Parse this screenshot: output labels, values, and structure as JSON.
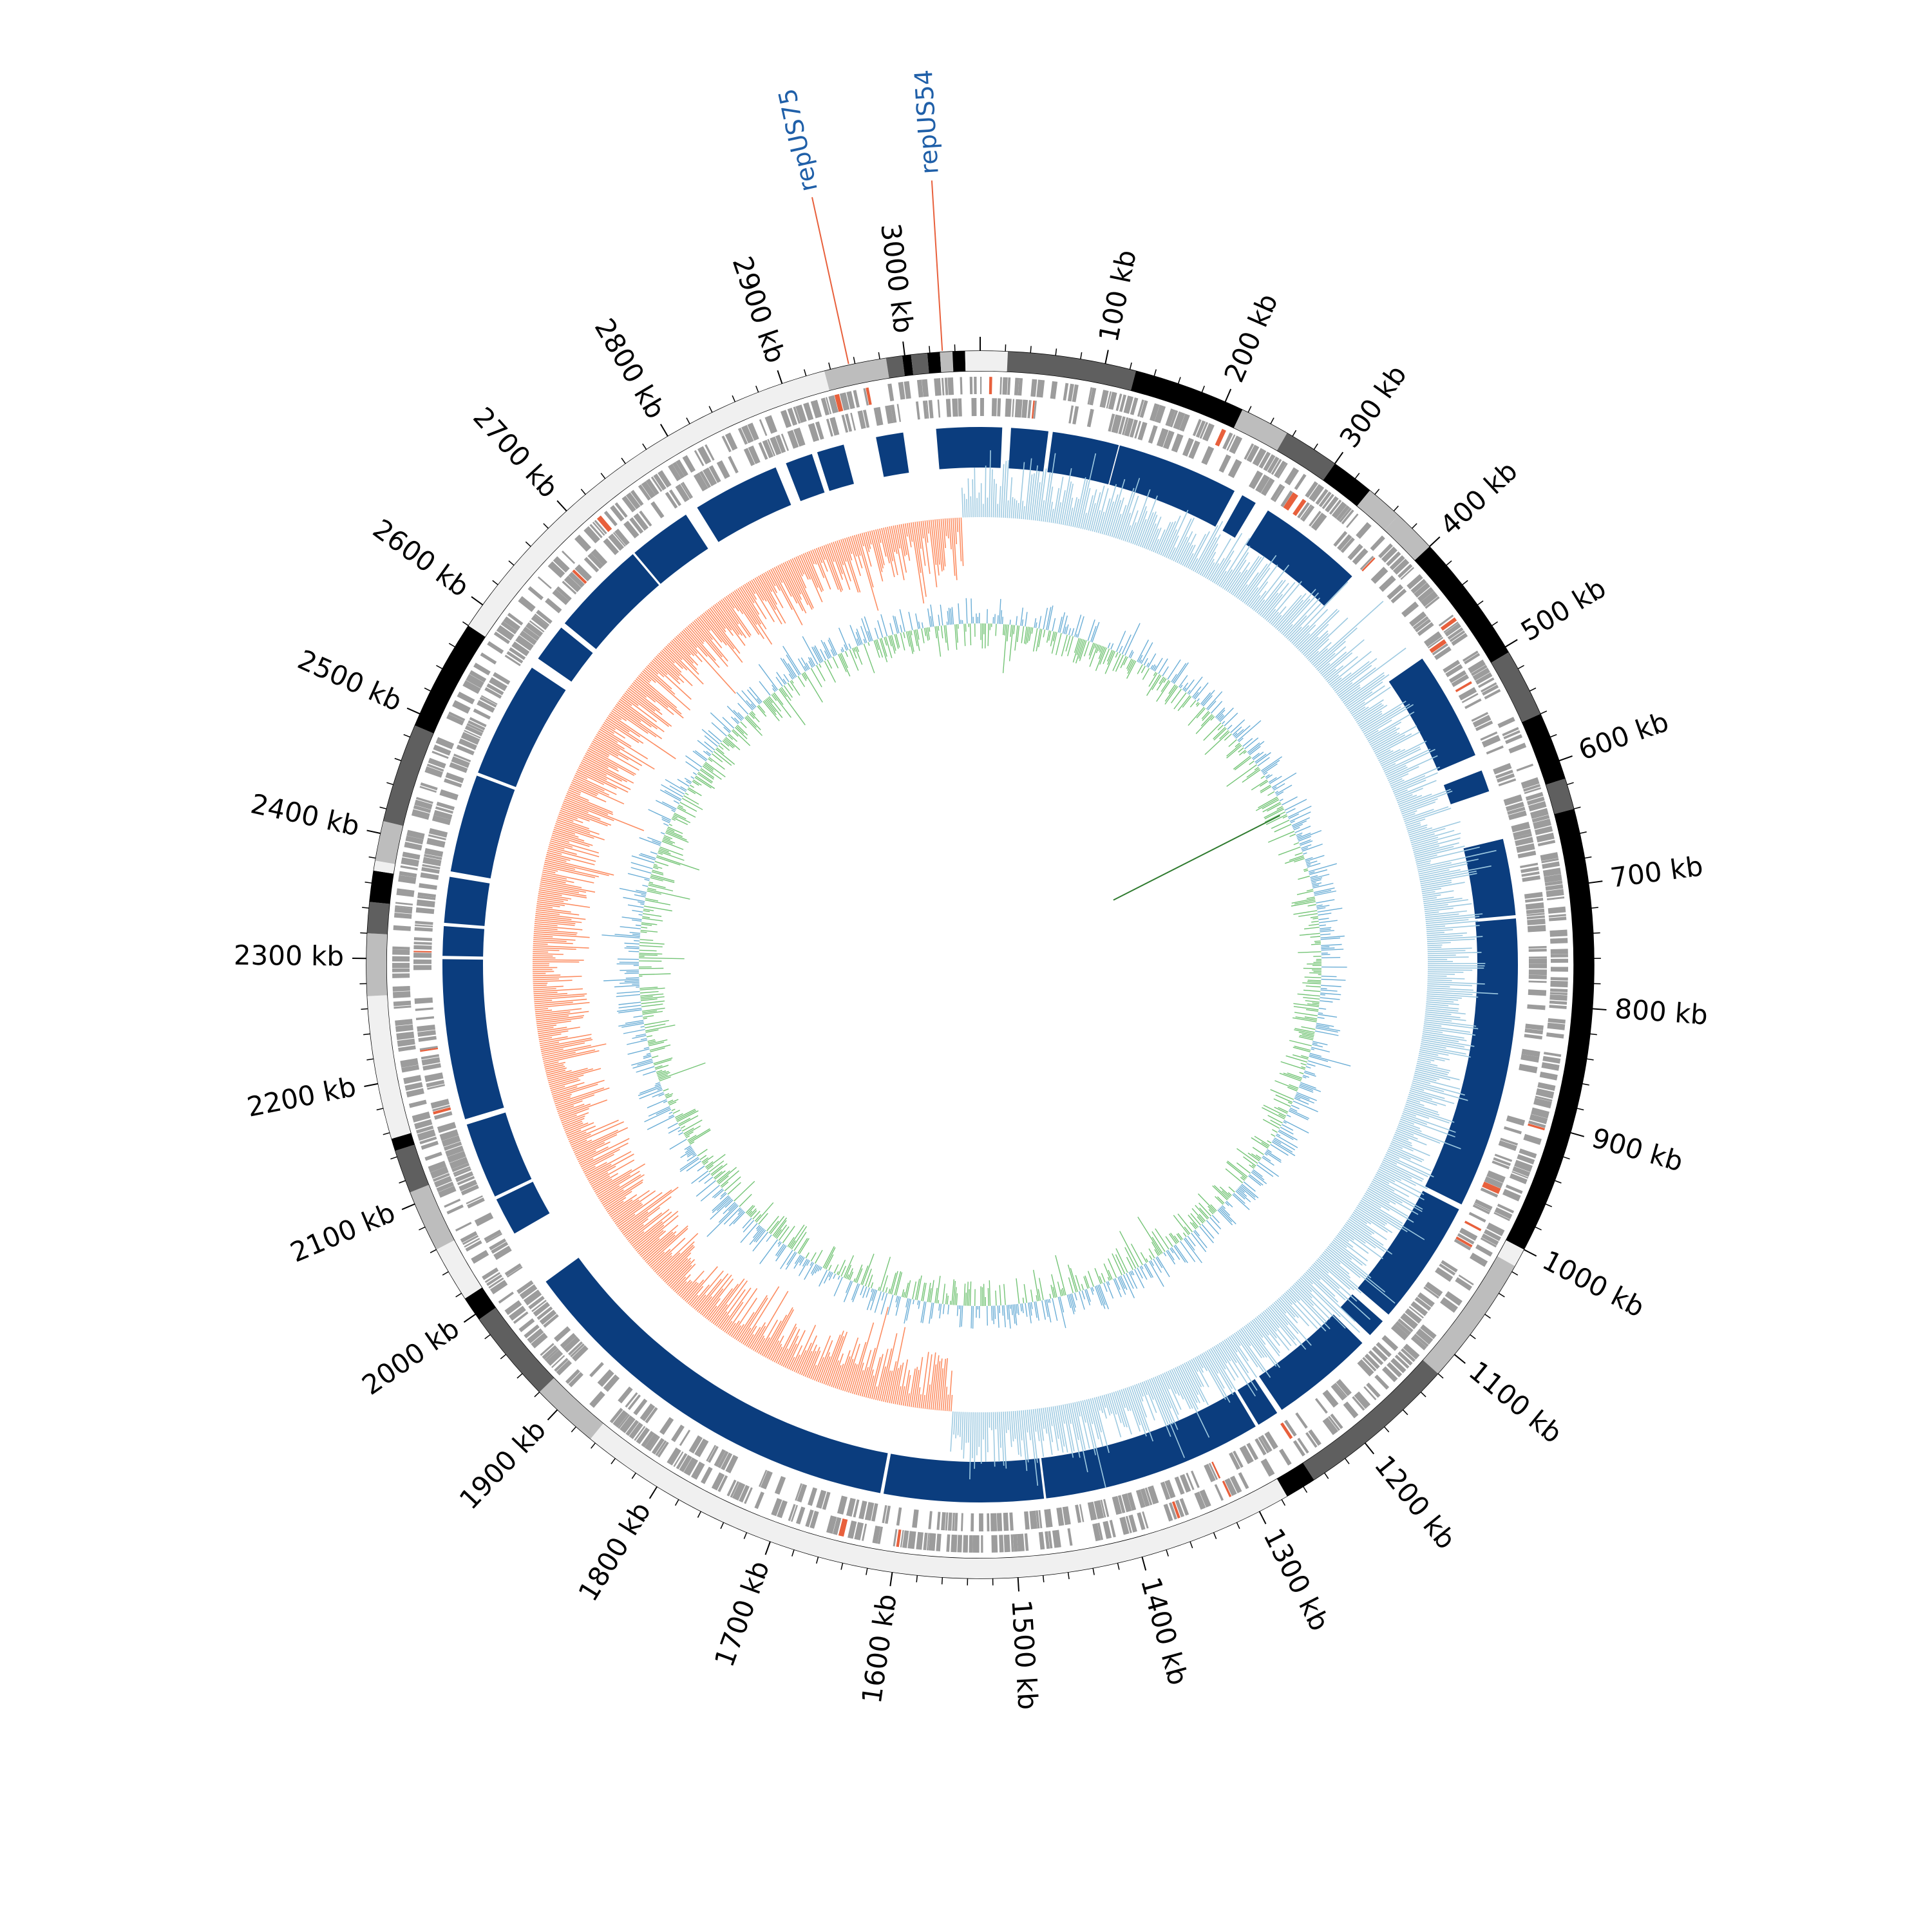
{
  "genome": {
    "length_kb": 3060,
    "tick_step_kb": 100,
    "minor_tick_step_kb": 20,
    "tick_labels": [
      "100 kb",
      "200 kb",
      "300 kb",
      "400 kb",
      "500 kb",
      "600 kb",
      "700 kb",
      "800 kb",
      "900 kb",
      "1000 kb",
      "1100 kb",
      "1200 kb",
      "1300 kb",
      "1400 kb",
      "1500 kb",
      "1600 kb",
      "1700 kb",
      "1800 kb",
      "1900 kb",
      "2000 kb",
      "2100 kb",
      "2200 kb",
      "2300 kb",
      "2400 kb",
      "2500 kb",
      "2600 kb",
      "2700 kb",
      "2800 kb",
      "2900 kb",
      "3000 kb"
    ]
  },
  "features": [
    {
      "label": "repUS54",
      "position_kb": 3030,
      "label_color": "#1f5fa8",
      "line_color": "#e8603c"
    },
    {
      "label": "repUS75",
      "position_kb": 2955,
      "label_color": "#1f5fa8",
      "line_color": "#e8603c"
    }
  ],
  "contigs": [
    {
      "start": 0,
      "end": 22,
      "shade": "#f0f0f0"
    },
    {
      "start": 22,
      "end": 125,
      "shade": "#5f5f5f"
    },
    {
      "start": 125,
      "end": 215,
      "shade": "#000000"
    },
    {
      "start": 215,
      "end": 255,
      "shade": "#bdbdbd"
    },
    {
      "start": 255,
      "end": 300,
      "shade": "#5f5f5f"
    },
    {
      "start": 300,
      "end": 335,
      "shade": "#000000"
    },
    {
      "start": 335,
      "end": 365,
      "shade": "#bdbdbd"
    },
    {
      "start": 365,
      "end": 400,
      "shade": "#bdbdbd"
    },
    {
      "start": 400,
      "end": 505,
      "shade": "#000000"
    },
    {
      "start": 505,
      "end": 560,
      "shade": "#5f5f5f"
    },
    {
      "start": 560,
      "end": 615,
      "shade": "#000000"
    },
    {
      "start": 615,
      "end": 640,
      "shade": "#5f5f5f"
    },
    {
      "start": 640,
      "end": 1000,
      "shade": "#000000"
    },
    {
      "start": 1000,
      "end": 1015,
      "shade": "#f0f0f0"
    },
    {
      "start": 1015,
      "end": 1120,
      "shade": "#bdbdbd"
    },
    {
      "start": 1120,
      "end": 1250,
      "shade": "#5f5f5f"
    },
    {
      "start": 1250,
      "end": 1275,
      "shade": "#000000"
    },
    {
      "start": 1275,
      "end": 1865,
      "shade": "#f0f0f0"
    },
    {
      "start": 1865,
      "end": 1920,
      "shade": "#bdbdbd"
    },
    {
      "start": 1920,
      "end": 1995,
      "shade": "#5f5f5f"
    },
    {
      "start": 1995,
      "end": 2015,
      "shade": "#000000"
    },
    {
      "start": 2015,
      "end": 2060,
      "shade": "#f0f0f0"
    },
    {
      "start": 2060,
      "end": 2110,
      "shade": "#bdbdbd"
    },
    {
      "start": 2110,
      "end": 2145,
      "shade": "#5f5f5f"
    },
    {
      "start": 2145,
      "end": 2155,
      "shade": "#000000"
    },
    {
      "start": 2155,
      "end": 2270,
      "shade": "#f0f0f0"
    },
    {
      "start": 2270,
      "end": 2320,
      "shade": "#bdbdbd"
    },
    {
      "start": 2320,
      "end": 2345,
      "shade": "#5f5f5f"
    },
    {
      "start": 2345,
      "end": 2370,
      "shade": "#000000"
    },
    {
      "start": 2370,
      "end": 2378,
      "shade": "#f0f0f0"
    },
    {
      "start": 2378,
      "end": 2410,
      "shade": "#bdbdbd"
    },
    {
      "start": 2410,
      "end": 2490,
      "shade": "#5f5f5f"
    },
    {
      "start": 2490,
      "end": 2580,
      "shade": "#000000"
    },
    {
      "start": 2580,
      "end": 2935,
      "shade": "#f0f0f0"
    },
    {
      "start": 2935,
      "end": 2985,
      "shade": "#bdbdbd"
    },
    {
      "start": 2985,
      "end": 2998,
      "shade": "#5f5f5f"
    },
    {
      "start": 2998,
      "end": 3005,
      "shade": "#000000"
    },
    {
      "start": 3005,
      "end": 3018,
      "shade": "#5f5f5f"
    },
    {
      "start": 3018,
      "end": 3028,
      "shade": "#000000"
    },
    {
      "start": 3028,
      "end": 3038,
      "shade": "#bdbdbd"
    },
    {
      "start": 3038,
      "end": 3048,
      "shade": "#000000"
    },
    {
      "start": 3048,
      "end": 3060,
      "shade": "#f0f0f0"
    }
  ],
  "homology_blocks": [
    {
      "start": 3020,
      "end": 3060
    },
    {
      "start": 0,
      "end": 20
    },
    {
      "start": 28,
      "end": 62
    },
    {
      "start": 66,
      "end": 127
    },
    {
      "start": 128,
      "end": 240
    },
    {
      "start": 248,
      "end": 262
    },
    {
      "start": 275,
      "end": 372
    },
    {
      "start": 470,
      "end": 570
    },
    {
      "start": 585,
      "end": 605
    },
    {
      "start": 650,
      "end": 720
    },
    {
      "start": 723,
      "end": 990
    },
    {
      "start": 995,
      "end": 1110
    },
    {
      "start": 1118,
      "end": 1135
    },
    {
      "start": 1145,
      "end": 1240
    },
    {
      "start": 1245,
      "end": 1265
    },
    {
      "start": 1268,
      "end": 1470
    },
    {
      "start": 1472,
      "end": 1618
    },
    {
      "start": 1621,
      "end": 1988
    },
    {
      "start": 2040,
      "end": 2075
    },
    {
      "start": 2078,
      "end": 2148
    },
    {
      "start": 2153,
      "end": 2300
    },
    {
      "start": 2303,
      "end": 2330
    },
    {
      "start": 2333,
      "end": 2375
    },
    {
      "start": 2380,
      "end": 2470
    },
    {
      "start": 2473,
      "end": 2580
    },
    {
      "start": 2590,
      "end": 2625
    },
    {
      "start": 2630,
      "end": 2718
    },
    {
      "start": 2720,
      "end": 2778
    },
    {
      "start": 2790,
      "end": 2870
    },
    {
      "start": 2880,
      "end": 2905
    },
    {
      "start": 2910,
      "end": 2935
    },
    {
      "start": 2965,
      "end": 2990
    }
  ],
  "colors": {
    "ring_outline": "#000000",
    "cds_gray": "#9c9c9c",
    "cds_red": "#e8603c",
    "homology_blue": "#0b3d7e",
    "gc_skew_positive": "#9ecae1",
    "gc_skew_negative": "#fc8d62",
    "gc_content_above": "#6baed6",
    "gc_content_below": "#74c476",
    "repeat_line": "#2f7b2f"
  }
}
